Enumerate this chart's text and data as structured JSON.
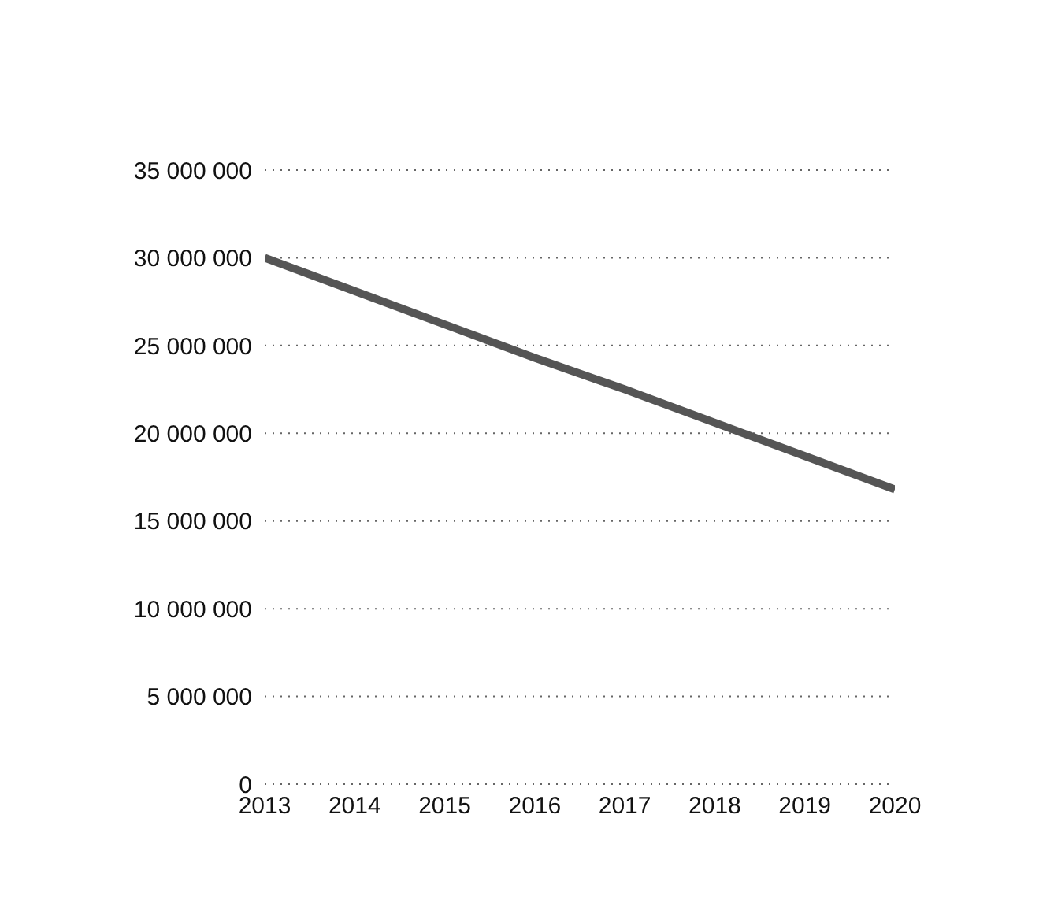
{
  "chart_data": {
    "type": "line",
    "categories": [
      "2013",
      "2014",
      "2015",
      "2016",
      "2017",
      "2018",
      "2019",
      "2020"
    ],
    "series": [
      {
        "color": "#555555",
        "values": [
          30000000,
          28100000,
          26200000,
          24300000,
          22500000,
          20600000,
          18700000,
          16800000
        ]
      }
    ],
    "ylim": [
      0,
      35000000
    ],
    "yticks": [
      0,
      5000000,
      10000000,
      15000000,
      20000000,
      25000000,
      30000000,
      35000000
    ],
    "grid": "y",
    "legend": false,
    "marker": "none",
    "line_style": "solid"
  }
}
